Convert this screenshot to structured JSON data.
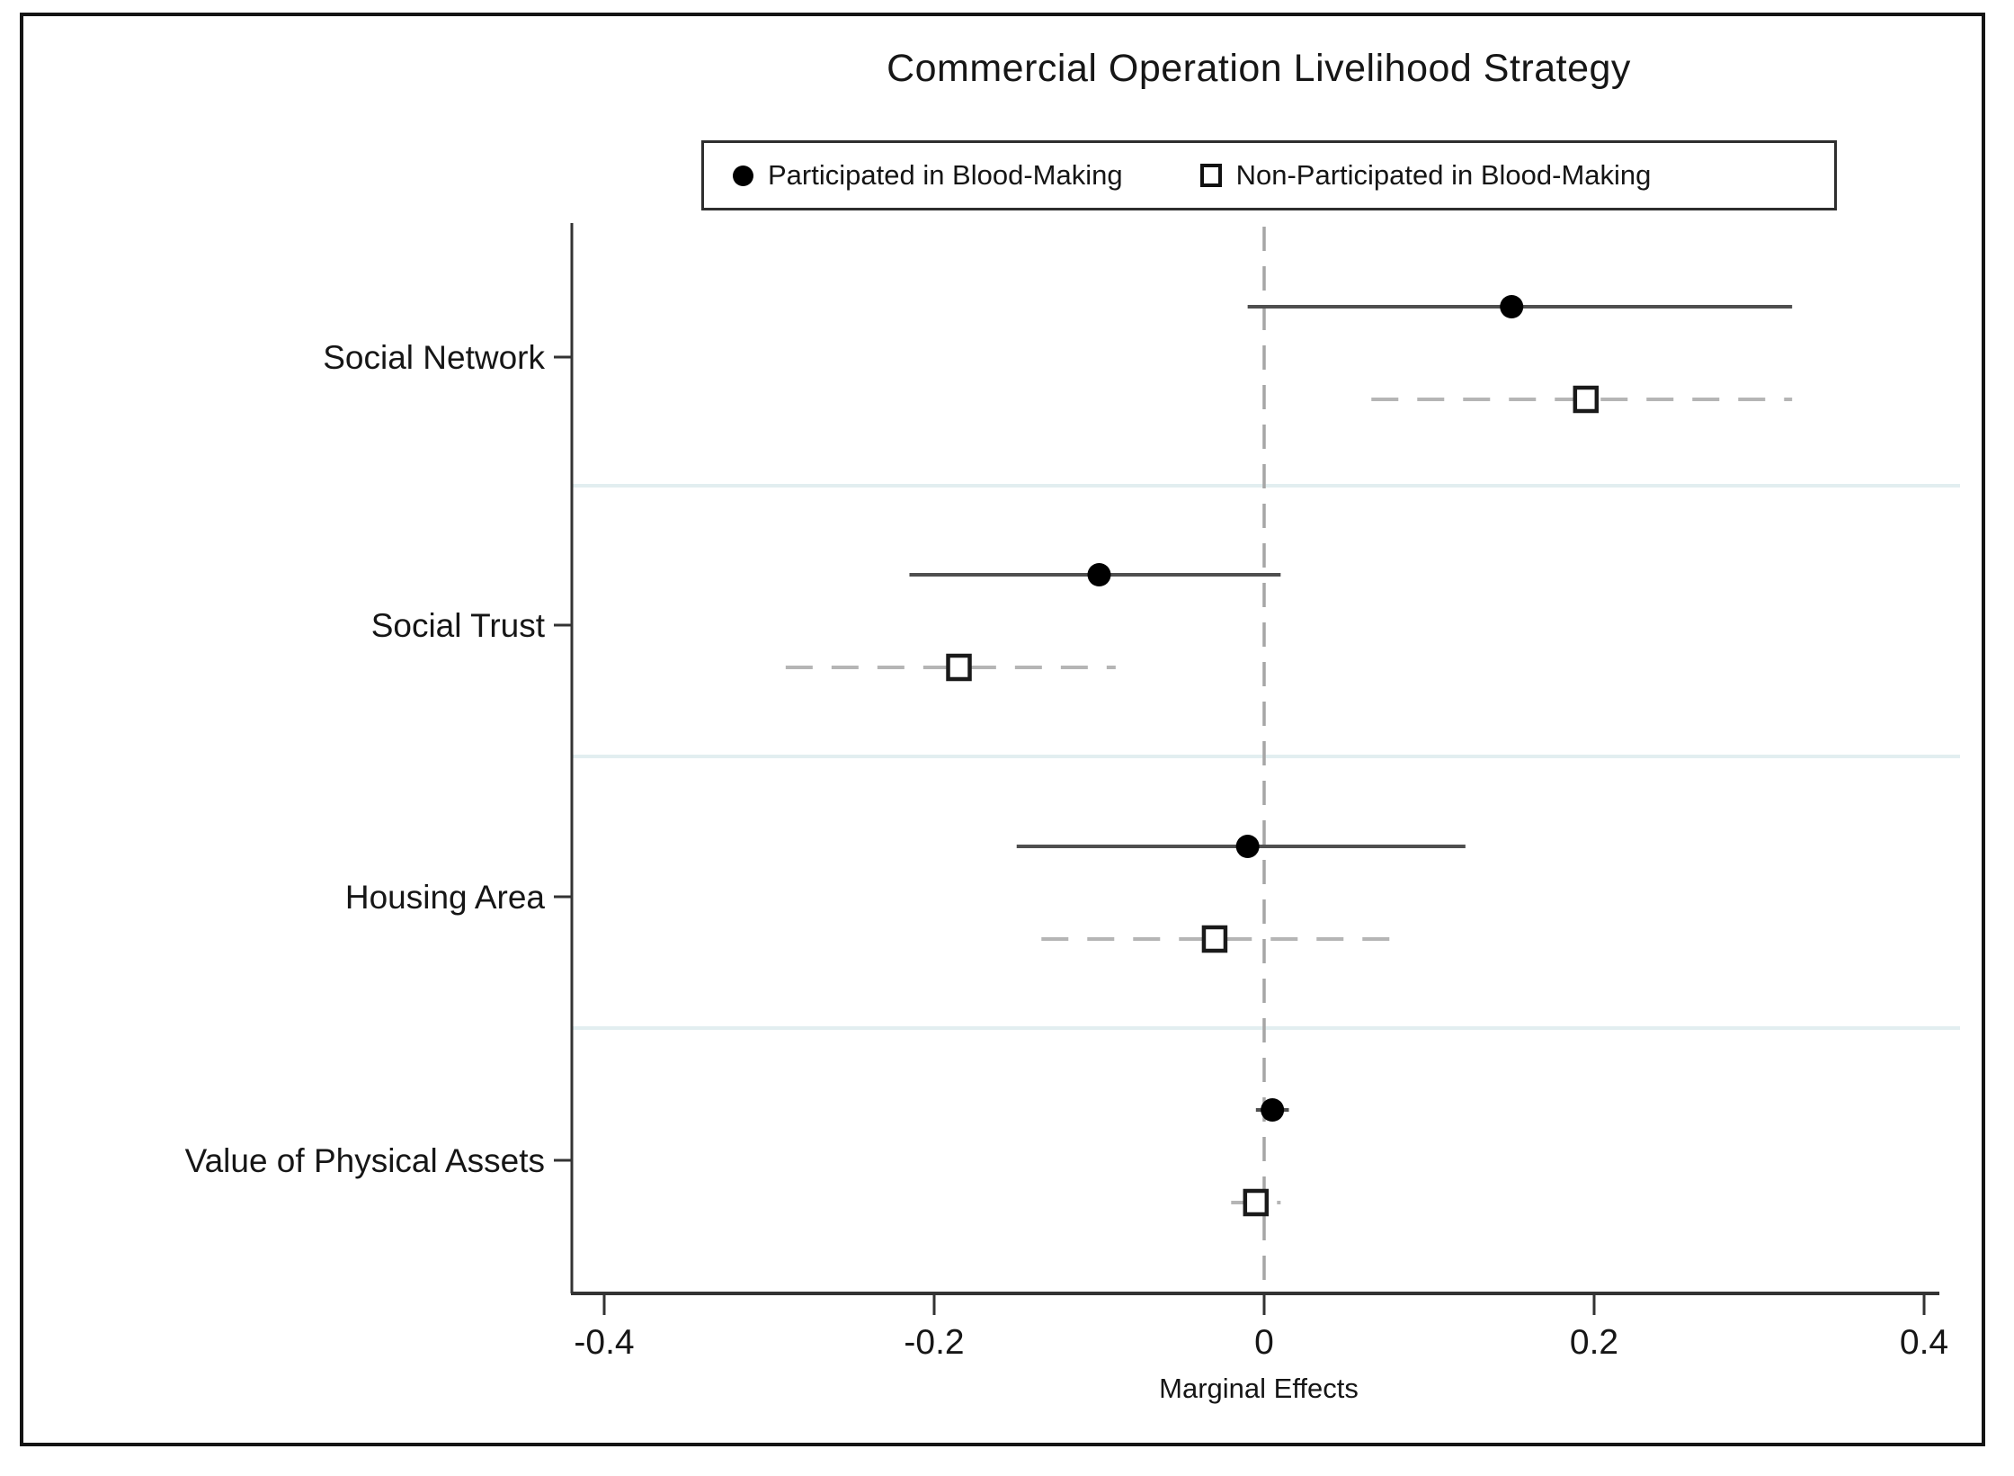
{
  "figure": {
    "title": "Commercial Operation Livelihood Strategy",
    "xlabel": "Marginal Effects"
  },
  "legend": {
    "items": [
      {
        "label": "Participated in Blood-Making",
        "marker": "filled-circle"
      },
      {
        "label": "Non-Participated in Blood-Making",
        "marker": "hollow-square"
      }
    ]
  },
  "chart_data": {
    "type": "scatter",
    "subtype": "coefficient-dot-whisker-plot",
    "title": "Commercial Operation Livelihood Strategy",
    "xlabel": "Marginal Effects",
    "xlim": [
      -0.42,
      0.41
    ],
    "x_ticks": [
      -0.4,
      -0.2,
      0,
      0.2,
      0.4
    ],
    "x_tick_labels": [
      "-0.4",
      "-0.2",
      "0",
      "0.2",
      "0.4"
    ],
    "categories": [
      "Social Network",
      "Social Trust",
      "Housing Area",
      "Value of Physical Assets"
    ],
    "zero_reference_line": 0,
    "grid": "light-row-separators",
    "legend_position": "top",
    "series": [
      {
        "name": "Participated in Blood-Making",
        "marker": "filled-circle",
        "line_style": "solid",
        "estimates": [
          0.15,
          -0.1,
          -0.01,
          0.005
        ],
        "ci_low": [
          -0.01,
          -0.215,
          -0.15,
          -0.005
        ],
        "ci_high": [
          0.32,
          0.01,
          0.122,
          0.015
        ]
      },
      {
        "name": "Non-Participated in Blood-Making",
        "marker": "hollow-square",
        "line_style": "dashed",
        "estimates": [
          0.195,
          -0.185,
          -0.03,
          -0.005
        ],
        "ci_low": [
          0.065,
          -0.29,
          -0.135,
          -0.02
        ],
        "ci_high": [
          0.32,
          -0.09,
          0.083,
          0.01
        ]
      }
    ]
  },
  "colors": {
    "solid_ci_line": "#4f4f4f",
    "dashed_ci_line": "#b5b5b5",
    "marker_fill": "#000000",
    "marker_stroke": "#1a1a1a",
    "zero_line": "#a6a6a6",
    "row_separator": "#e2eef0",
    "axis": "#333333",
    "text": "#161616"
  }
}
